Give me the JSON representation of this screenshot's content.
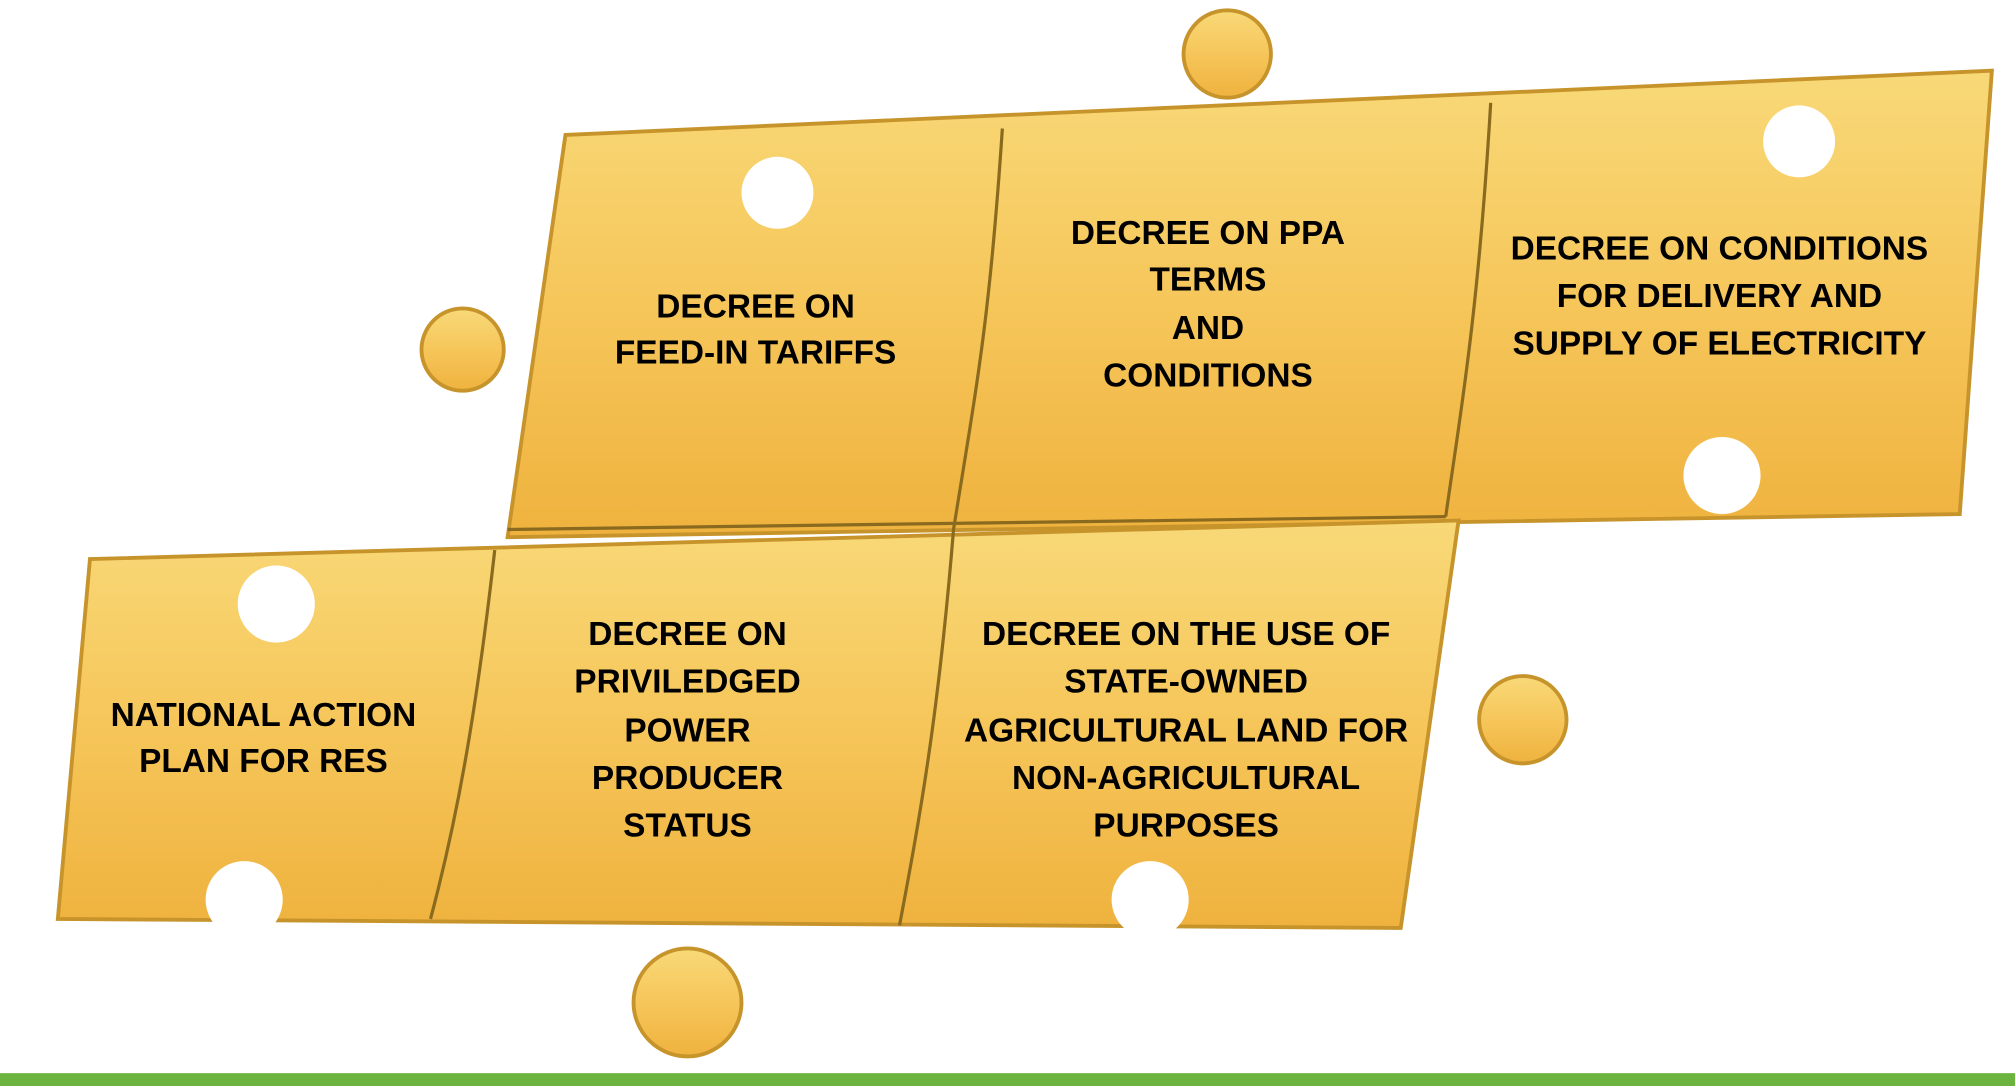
{
  "pieces": [
    {
      "lines": [
        "DECREE ON",
        "FEED-IN TARIFFS"
      ]
    },
    {
      "lines": [
        "DECREE ON PPA",
        "TERMS",
        "AND",
        "CONDITIONS"
      ]
    },
    {
      "lines": [
        "DECREE ON CONDITIONS",
        "FOR DELIVERY AND",
        "SUPPLY OF ELECTRICITY"
      ]
    },
    {
      "lines": [
        "NATIONAL ACTION",
        "PLAN FOR RES"
      ]
    },
    {
      "lines": [
        "DECREE ON",
        "PRIVILEDGED",
        "POWER",
        "PRODUCER",
        "STATUS"
      ]
    },
    {
      "lines": [
        "DECREE ON THE USE OF",
        "STATE-OWNED",
        "AGRICULTURAL LAND FOR",
        "NON-AGRICULTURAL",
        "PURPOSES"
      ]
    }
  ]
}
